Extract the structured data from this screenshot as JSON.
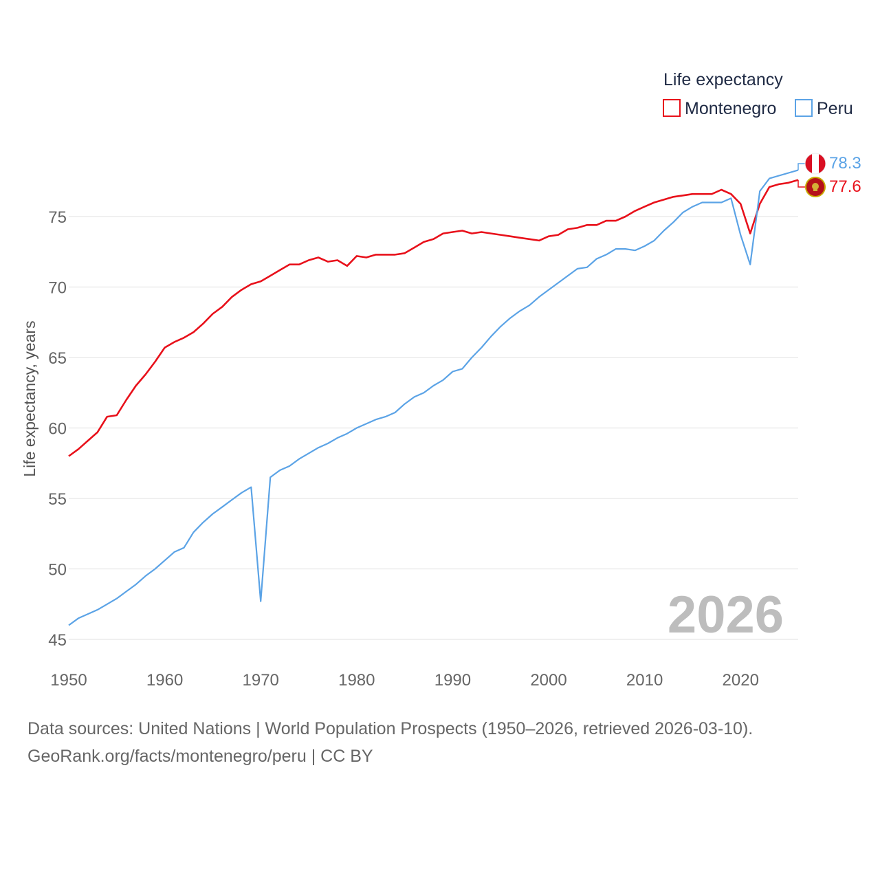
{
  "chart_data": {
    "type": "line",
    "title": "",
    "xlabel": "",
    "ylabel": "Life expectancy, years",
    "xlim": [
      1950,
      2026
    ],
    "ylim": [
      45,
      80
    ],
    "x_ticks": [
      1950,
      1960,
      1970,
      1980,
      1990,
      2000,
      2010,
      2020
    ],
    "y_ticks": [
      45,
      50,
      55,
      60,
      65,
      70,
      75
    ],
    "legend": {
      "title": "Life expectancy",
      "position": "top-right"
    },
    "year_watermark": "2026",
    "series": [
      {
        "name": "Montenegro",
        "color": "#e8101a",
        "end_label": "77.6",
        "flag": "montenegro-flag",
        "x": [
          1950,
          1951,
          1952,
          1953,
          1954,
          1955,
          1956,
          1957,
          1958,
          1959,
          1960,
          1961,
          1962,
          1963,
          1964,
          1965,
          1966,
          1967,
          1968,
          1969,
          1970,
          1971,
          1972,
          1973,
          1974,
          1975,
          1976,
          1977,
          1978,
          1979,
          1980,
          1981,
          1982,
          1983,
          1984,
          1985,
          1986,
          1987,
          1988,
          1989,
          1990,
          1991,
          1992,
          1993,
          1994,
          1995,
          1996,
          1997,
          1998,
          1999,
          2000,
          2001,
          2002,
          2003,
          2004,
          2005,
          2006,
          2007,
          2008,
          2009,
          2010,
          2011,
          2012,
          2013,
          2014,
          2015,
          2016,
          2017,
          2018,
          2019,
          2020,
          2021,
          2022,
          2023,
          2024,
          2025,
          2026
        ],
        "values": [
          58.0,
          58.5,
          59.1,
          59.7,
          60.8,
          60.9,
          62.0,
          63.0,
          63.8,
          64.7,
          65.7,
          66.1,
          66.4,
          66.8,
          67.4,
          68.1,
          68.6,
          69.3,
          69.8,
          70.2,
          70.4,
          70.8,
          71.2,
          71.6,
          71.6,
          71.9,
          72.1,
          71.8,
          71.9,
          71.5,
          72.2,
          72.1,
          72.3,
          72.3,
          72.3,
          72.4,
          72.8,
          73.2,
          73.4,
          73.8,
          73.9,
          74.0,
          73.8,
          73.9,
          73.8,
          73.7,
          73.6,
          73.5,
          73.4,
          73.3,
          73.6,
          73.7,
          74.1,
          74.2,
          74.4,
          74.4,
          74.7,
          74.7,
          75.0,
          75.4,
          75.7,
          76.0,
          76.2,
          76.4,
          76.5,
          76.6,
          76.6,
          76.6,
          76.9,
          76.6,
          75.9,
          73.8,
          75.9,
          77.1,
          77.3,
          77.4,
          77.6
        ]
      },
      {
        "name": "Peru",
        "color": "#5ba3e6",
        "end_label": "78.3",
        "flag": "peru-flag",
        "x": [
          1950,
          1951,
          1952,
          1953,
          1954,
          1955,
          1956,
          1957,
          1958,
          1959,
          1960,
          1961,
          1962,
          1963,
          1964,
          1965,
          1966,
          1967,
          1968,
          1969,
          1970,
          1971,
          1972,
          1973,
          1974,
          1975,
          1976,
          1977,
          1978,
          1979,
          1980,
          1981,
          1982,
          1983,
          1984,
          1985,
          1986,
          1987,
          1988,
          1989,
          1990,
          1991,
          1992,
          1993,
          1994,
          1995,
          1996,
          1997,
          1998,
          1999,
          2000,
          2001,
          2002,
          2003,
          2004,
          2005,
          2006,
          2007,
          2008,
          2009,
          2010,
          2011,
          2012,
          2013,
          2014,
          2015,
          2016,
          2017,
          2018,
          2019,
          2020,
          2021,
          2022,
          2023,
          2024,
          2025,
          2026
        ],
        "values": [
          46.0,
          46.5,
          46.8,
          47.1,
          47.5,
          47.9,
          48.4,
          48.9,
          49.5,
          50.0,
          50.6,
          51.2,
          51.5,
          52.6,
          53.3,
          53.9,
          54.4,
          54.9,
          55.4,
          55.8,
          47.7,
          56.5,
          57.0,
          57.3,
          57.8,
          58.2,
          58.6,
          58.9,
          59.3,
          59.6,
          60.0,
          60.3,
          60.6,
          60.8,
          61.1,
          61.7,
          62.2,
          62.5,
          63.0,
          63.4,
          64.0,
          64.2,
          65.0,
          65.7,
          66.5,
          67.2,
          67.8,
          68.3,
          68.7,
          69.3,
          69.8,
          70.3,
          70.8,
          71.3,
          71.4,
          72.0,
          72.3,
          72.7,
          72.7,
          72.6,
          72.9,
          73.3,
          74.0,
          74.6,
          75.3,
          75.7,
          76.0,
          76.0,
          76.0,
          76.3,
          73.7,
          71.6,
          76.8,
          77.7,
          77.9,
          78.1,
          78.3
        ]
      }
    ]
  },
  "source": {
    "line1": "Data sources: United Nations | World Population Prospects (1950–2026, retrieved 2026-03-10).",
    "line2": "GeoRank.org/facts/montenegro/peru | CC BY"
  }
}
